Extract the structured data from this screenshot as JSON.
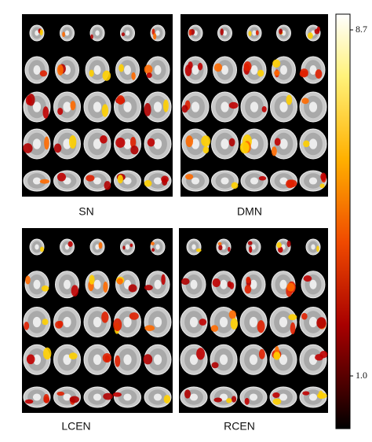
{
  "panels": [
    {
      "label": "SN"
    },
    {
      "label": "DMN"
    },
    {
      "label": "LCEN"
    },
    {
      "label": "RCEN"
    }
  ],
  "colorbar": {
    "max_label": "8.7",
    "min_label": "1.0"
  }
}
